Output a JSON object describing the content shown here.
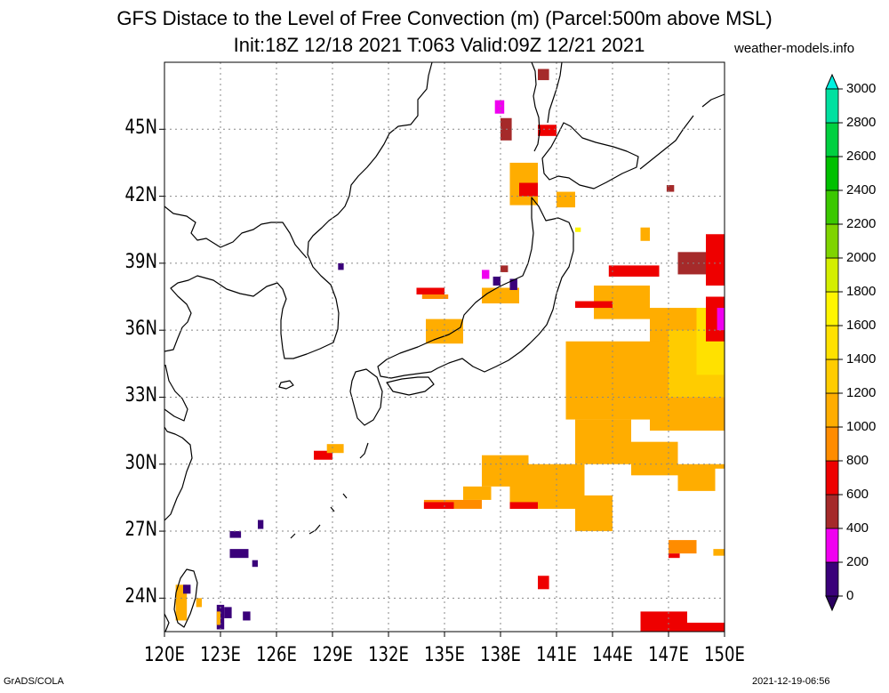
{
  "title": {
    "line1": "GFS Distace to the Level of Free Convection (m) (Parcel:500m above MSL)",
    "line2": "Init:18Z 12/18 2021 T:063 Valid:09Z 12/21 2021"
  },
  "site": "weather-models.info",
  "footer": {
    "left": "GrADS/COLA",
    "right": "2021-12-19-06:56"
  },
  "map": {
    "lon_range": [
      120,
      150
    ],
    "lat_range": [
      22.5,
      48
    ],
    "lat_ticks": [
      {
        "value": 24,
        "label": "24N"
      },
      {
        "value": 27,
        "label": "27N"
      },
      {
        "value": 30,
        "label": "30N"
      },
      {
        "value": 33,
        "label": "33N"
      },
      {
        "value": 36,
        "label": "36N"
      },
      {
        "value": 39,
        "label": "39N"
      },
      {
        "value": 42,
        "label": "42N"
      },
      {
        "value": 45,
        "label": "45N"
      }
    ],
    "lon_ticks": [
      {
        "value": 120,
        "label": "120E"
      },
      {
        "value": 123,
        "label": "123E"
      },
      {
        "value": 126,
        "label": "126E"
      },
      {
        "value": 129,
        "label": "129E"
      },
      {
        "value": 132,
        "label": "132E"
      },
      {
        "value": 135,
        "label": "135E"
      },
      {
        "value": 138,
        "label": "138E"
      },
      {
        "value": 141,
        "label": "141E"
      },
      {
        "value": 144,
        "label": "144E"
      },
      {
        "value": 147,
        "label": "147E"
      },
      {
        "value": 150,
        "label": "150E"
      }
    ],
    "grid": true
  },
  "colorbar": {
    "levels": [
      {
        "label": "0",
        "color": "#3a007a"
      },
      {
        "label": "200",
        "color": "#f000f0"
      },
      {
        "label": "400",
        "color": "#a52a2a"
      },
      {
        "label": "600",
        "color": "#ee0000"
      },
      {
        "label": "800",
        "color": "#ff8c00"
      },
      {
        "label": "1000",
        "color": "#ffad00"
      },
      {
        "label": "1200",
        "color": "#ffcc00"
      },
      {
        "label": "1400",
        "color": "#ffe100"
      },
      {
        "label": "1600",
        "color": "#fff500"
      },
      {
        "label": "1800",
        "color": "#d4ee00"
      },
      {
        "label": "2000",
        "color": "#7fd400"
      },
      {
        "label": "2200",
        "color": "#3bc800"
      },
      {
        "label": "2400",
        "color": "#00c000"
      },
      {
        "label": "2600",
        "color": "#00d040"
      },
      {
        "label": "2800",
        "color": "#00e0a0"
      },
      {
        "label": "3000",
        "color": "#00e8d0"
      }
    ],
    "below_color": "#2a0060",
    "above_color": "#00f0e0"
  },
  "fields": [
    {
      "lon": [
        134.0,
        136.0
      ],
      "lat": [
        35.4,
        36.5
      ],
      "level": 1000
    },
    {
      "lon": [
        133.5,
        135.0
      ],
      "lat": [
        37.6,
        37.9
      ],
      "level": 600
    },
    {
      "lon": [
        133.8,
        135.2
      ],
      "lat": [
        37.4,
        37.6
      ],
      "level": 800
    },
    {
      "lon": [
        137.0,
        139.0
      ],
      "lat": [
        37.2,
        37.9
      ],
      "level": 1000
    },
    {
      "lon": [
        138.5,
        140.0
      ],
      "lat": [
        41.6,
        43.5
      ],
      "level": 1000
    },
    {
      "lon": [
        139.0,
        140.0
      ],
      "lat": [
        42.0,
        42.6
      ],
      "level": 600
    },
    {
      "lon": [
        138.0,
        138.6
      ],
      "lat": [
        44.5,
        45.5
      ],
      "level": 400
    },
    {
      "lon": [
        137.7,
        138.2
      ],
      "lat": [
        45.7,
        46.3
      ],
      "level": 200
    },
    {
      "lon": [
        140.0,
        141.0
      ],
      "lat": [
        44.7,
        45.2
      ],
      "level": 600
    },
    {
      "lon": [
        141.0,
        142.0
      ],
      "lat": [
        41.5,
        42.2
      ],
      "level": 1000
    },
    {
      "lon": [
        140.0,
        140.6
      ],
      "lat": [
        47.2,
        47.7
      ],
      "level": 400
    },
    {
      "lon": [
        143.0,
        146.0
      ],
      "lat": [
        36.5,
        38.0
      ],
      "level": 1000
    },
    {
      "lon": [
        146.0,
        150.0
      ],
      "lat": [
        31.5,
        37.0
      ],
      "level": 1000
    },
    {
      "lon": [
        147.0,
        150.0
      ],
      "lat": [
        33.0,
        36.0
      ],
      "level": 1200
    },
    {
      "lon": [
        148.5,
        150.0
      ],
      "lat": [
        34.0,
        37.0
      ],
      "level": 1400
    },
    {
      "lon": [
        149.0,
        150.0
      ],
      "lat": [
        35.5,
        37.5
      ],
      "level": 600
    },
    {
      "lon": [
        149.6,
        150.0
      ],
      "lat": [
        36.0,
        37.0
      ],
      "level": 200
    },
    {
      "lon": [
        147.5,
        150.0
      ],
      "lat": [
        38.5,
        39.5
      ],
      "level": 400
    },
    {
      "lon": [
        149.0,
        150.0
      ],
      "lat": [
        38.0,
        40.3
      ],
      "level": 600
    },
    {
      "lon": [
        143.8,
        146.5
      ],
      "lat": [
        38.4,
        38.9
      ],
      "level": 600
    },
    {
      "lon": [
        142.0,
        144.0
      ],
      "lat": [
        37.0,
        37.3
      ],
      "level": 600
    },
    {
      "lon": [
        141.5,
        146.5
      ],
      "lat": [
        32.0,
        35.5
      ],
      "level": 1000
    },
    {
      "lon": [
        142.0,
        145.0
      ],
      "lat": [
        30.0,
        32.0
      ],
      "level": 1000
    },
    {
      "lon": [
        137.0,
        139.5
      ],
      "lat": [
        29.0,
        30.4
      ],
      "level": 1000
    },
    {
      "lon": [
        138.5,
        142.5
      ],
      "lat": [
        28.0,
        30.0
      ],
      "level": 1000
    },
    {
      "lon": [
        138.5,
        140.0
      ],
      "lat": [
        28.0,
        28.3
      ],
      "level": 600
    },
    {
      "lon": [
        136.0,
        137.5
      ],
      "lat": [
        28.4,
        29.0
      ],
      "level": 1000
    },
    {
      "lon": [
        133.9,
        137.0
      ],
      "lat": [
        28.0,
        28.4
      ],
      "level": 800
    },
    {
      "lon": [
        133.9,
        135.5
      ],
      "lat": [
        28.0,
        28.3
      ],
      "level": 600
    },
    {
      "lon": [
        145.0,
        147.5
      ],
      "lat": [
        29.5,
        31.0
      ],
      "level": 1000
    },
    {
      "lon": [
        147.5,
        149.5
      ],
      "lat": [
        28.8,
        30.0
      ],
      "level": 1000
    },
    {
      "lon": [
        149.0,
        150.0
      ],
      "lat": [
        29.8,
        30.0
      ],
      "level": 1000
    },
    {
      "lon": [
        142.0,
        144.0
      ],
      "lat": [
        27.0,
        28.6
      ],
      "level": 1000
    },
    {
      "lon": [
        147.0,
        148.5
      ],
      "lat": [
        26.0,
        26.6
      ],
      "level": 800
    },
    {
      "lon": [
        147.0,
        147.6
      ],
      "lat": [
        25.8,
        26.0
      ],
      "level": 600
    },
    {
      "lon": [
        149.4,
        150.0
      ],
      "lat": [
        25.9,
        26.2
      ],
      "level": 1000
    },
    {
      "lon": [
        140.0,
        140.6
      ],
      "lat": [
        24.4,
        25.0
      ],
      "level": 600
    },
    {
      "lon": [
        145.5,
        148.0
      ],
      "lat": [
        22.5,
        23.4
      ],
      "level": 600
    },
    {
      "lon": [
        148.0,
        150.0
      ],
      "lat": [
        22.5,
        22.9
      ],
      "level": 600
    },
    {
      "lon": [
        128.0,
        129.0
      ],
      "lat": [
        30.2,
        30.6
      ],
      "level": 600
    },
    {
      "lon": [
        128.7,
        129.6
      ],
      "lat": [
        30.5,
        30.9
      ],
      "level": 1000
    },
    {
      "lon": [
        123.5,
        124.5
      ],
      "lat": [
        25.8,
        26.2
      ],
      "level": 0
    },
    {
      "lon": [
        123.5,
        124.1
      ],
      "lat": [
        26.7,
        27.0
      ],
      "level": 0
    },
    {
      "lon": [
        124.7,
        125.0
      ],
      "lat": [
        25.4,
        25.7
      ],
      "level": 0
    },
    {
      "lon": [
        125.0,
        125.3
      ],
      "lat": [
        27.1,
        27.5
      ],
      "level": 0
    },
    {
      "lon": [
        122.8,
        123.2
      ],
      "lat": [
        22.6,
        23.7
      ],
      "level": 0
    },
    {
      "lon": [
        122.8,
        123.0
      ],
      "lat": [
        22.8,
        23.4
      ],
      "level": 1000
    },
    {
      "lon": [
        123.2,
        123.6
      ],
      "lat": [
        23.1,
        23.6
      ],
      "level": 0
    },
    {
      "lon": [
        124.2,
        124.6
      ],
      "lat": [
        23.0,
        23.4
      ],
      "level": 0
    },
    {
      "lon": [
        120.6,
        121.2
      ],
      "lat": [
        23.0,
        24.6
      ],
      "level": 1000
    },
    {
      "lon": [
        121.0,
        121.4
      ],
      "lat": [
        24.2,
        24.6
      ],
      "level": 0
    },
    {
      "lon": [
        121.7,
        122.0
      ],
      "lat": [
        23.6,
        24.0
      ],
      "level": 1000
    },
    {
      "lon": [
        137.6,
        138.0
      ],
      "lat": [
        38.0,
        38.4
      ],
      "level": 0
    },
    {
      "lon": [
        138.5,
        138.9
      ],
      "lat": [
        37.8,
        38.3
      ],
      "level": 0
    },
    {
      "lon": [
        137.0,
        137.4
      ],
      "lat": [
        38.3,
        38.7
      ],
      "level": 200
    },
    {
      "lon": [
        138.0,
        138.4
      ],
      "lat": [
        38.6,
        38.9
      ],
      "level": 400
    },
    {
      "lon": [
        129.3,
        129.6
      ],
      "lat": [
        38.7,
        39.0
      ],
      "level": 0
    },
    {
      "lon": [
        142.0,
        142.3
      ],
      "lat": [
        40.4,
        40.6
      ],
      "level": 1600
    },
    {
      "lon": [
        145.5,
        146.0
      ],
      "lat": [
        40.0,
        40.6
      ],
      "level": 1000
    },
    {
      "lon": [
        146.9,
        147.3
      ],
      "lat": [
        42.2,
        42.5
      ],
      "level": 400
    }
  ]
}
